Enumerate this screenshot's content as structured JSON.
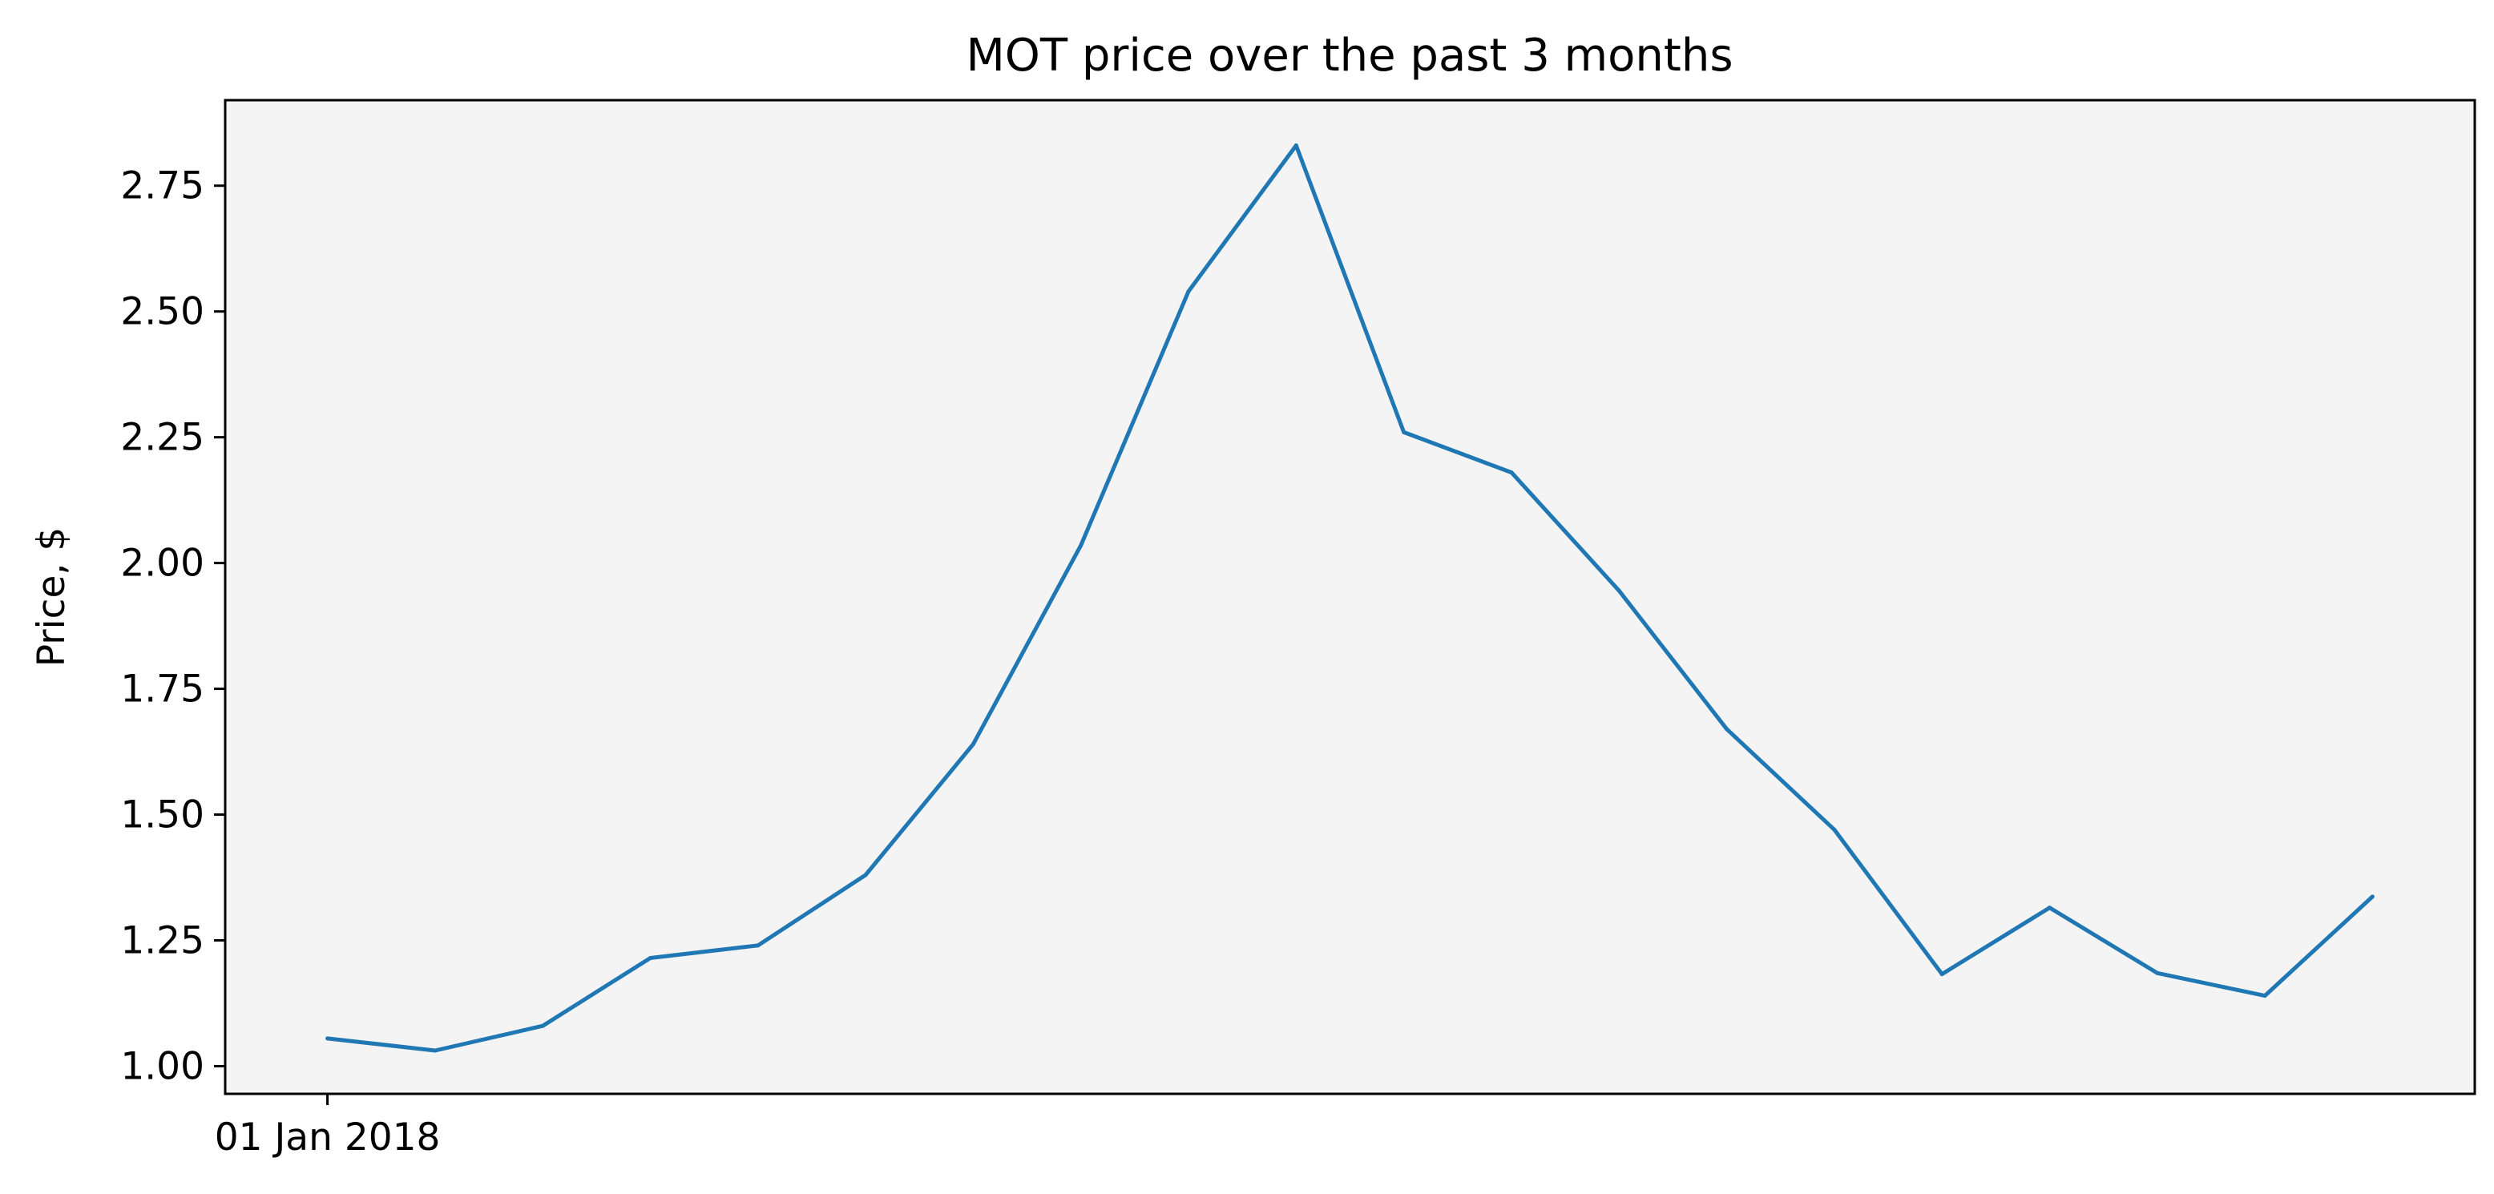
{
  "chart_data": {
    "type": "line",
    "title": "MOT price over the past 3 months",
    "xlabel": "",
    "ylabel": "Price, $",
    "x_tick_labels": [
      "01 Jan 2018"
    ],
    "y_ticks": [
      1.0,
      1.25,
      1.5,
      1.75,
      2.0,
      2.25,
      2.5,
      2.75
    ],
    "y_tick_labels": [
      "1.00",
      "1.25",
      "1.50",
      "1.75",
      "2.00",
      "2.25",
      "2.50",
      "2.75"
    ],
    "ylim": [
      0.945,
      2.92
    ],
    "x_range_points": [
      -0.95,
      19.95
    ],
    "grid": false,
    "background_color": "#f4f4f4",
    "series": [
      {
        "color": "#1f77b4",
        "values": [
          1.055,
          1.031,
          1.08,
          1.215,
          1.24,
          1.38,
          1.64,
          2.035,
          2.54,
          2.83,
          2.26,
          2.18,
          1.945,
          1.67,
          1.47,
          1.183,
          1.315,
          1.185,
          1.14,
          1.337
        ]
      }
    ]
  }
}
